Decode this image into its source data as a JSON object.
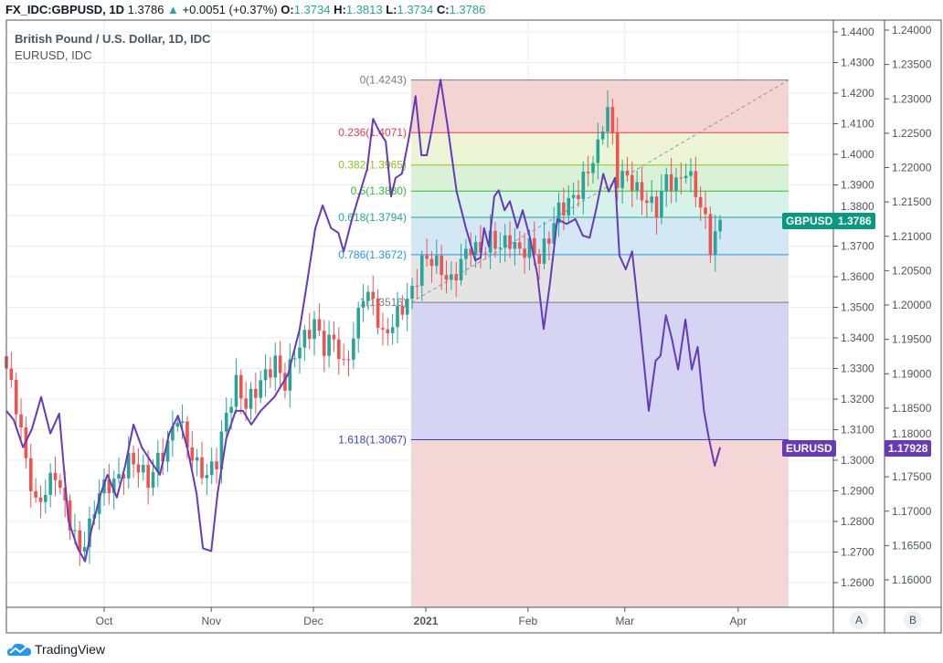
{
  "header": {
    "symbol": "FX_IDC:GBPUSD, 1D",
    "last": "1.3786",
    "change": "+0.0051 (+0.37%)",
    "o_label": "O:",
    "o": "1.3734",
    "h_label": "H:",
    "h": "1.3813",
    "l_label": "L:",
    "l": "1.3734",
    "c_label": "C:",
    "c": "1.3786"
  },
  "legend": {
    "main": "British Pound / U.S. Dollar, 1D, IDC",
    "compare": "EURUSD, IDC"
  },
  "brand": "TradingView",
  "scale_buttons": [
    "A",
    "B"
  ],
  "colors": {
    "up": "#26a69a",
    "down": "#ef5350",
    "eurusd": "#673ab7",
    "gbp_tag": "#089981"
  },
  "chart_data": {
    "type": "candlestick+line",
    "x_unit": "trading day index",
    "x_ticks": [
      {
        "day": 20,
        "label": "Oct"
      },
      {
        "day": 41.9,
        "label": "Nov"
      },
      {
        "day": 62.8,
        "label": "Dec"
      },
      {
        "day": 85.8,
        "label": "2021"
      },
      {
        "day": 106.7,
        "label": "Feb"
      },
      {
        "day": 126.5,
        "label": "Mar"
      },
      {
        "day": 149.7,
        "label": "Apr"
      }
    ],
    "left_axis": {
      "symbol": "GBPUSD",
      "ticks": [
        "1.4400",
        "1.4300",
        "1.4200",
        "1.4100",
        "1.4000",
        "1.3900",
        "1.3800",
        "1.3700",
        "1.3600",
        "1.3500",
        "1.3400",
        "1.3300",
        "1.3200",
        "1.3100",
        "1.3000",
        "1.2900",
        "1.2800",
        "1.2700",
        "1.2600"
      ],
      "last_tag": "GBPUSD",
      "last_value": "1.3786"
    },
    "right_axis": {
      "symbol": "EURUSD",
      "ticks": [
        "1.24000",
        "1.23500",
        "1.23000",
        "1.22500",
        "1.22000",
        "1.21500",
        "1.21000",
        "1.20500",
        "1.20000",
        "1.19500",
        "1.19000",
        "1.18500",
        "1.18000",
        "1.17500",
        "1.17000",
        "1.16500",
        "1.16000"
      ],
      "last_tag": "EURUSD",
      "last_value": "1.17928"
    },
    "gbpusd_close_anchors": [
      [
        0,
        1.33
      ],
      [
        2,
        1.318
      ],
      [
        4,
        1.3
      ],
      [
        6,
        1.285
      ],
      [
        8,
        1.29
      ],
      [
        10,
        1.296
      ],
      [
        12,
        1.285
      ],
      [
        14,
        1.275
      ],
      [
        15,
        1.27
      ],
      [
        17,
        1.278
      ],
      [
        19,
        1.29
      ],
      [
        21,
        1.292
      ],
      [
        23,
        1.294
      ],
      [
        25,
        1.3
      ],
      [
        27,
        1.298
      ],
      [
        29,
        1.293
      ],
      [
        31,
        1.3
      ],
      [
        33,
        1.305
      ],
      [
        35,
        1.315
      ],
      [
        37,
        1.305
      ],
      [
        39,
        1.298
      ],
      [
        41,
        1.295
      ],
      [
        43,
        1.3
      ],
      [
        45,
        1.315
      ],
      [
        47,
        1.325
      ],
      [
        49,
        1.318
      ],
      [
        51,
        1.323
      ],
      [
        53,
        1.328
      ],
      [
        55,
        1.332
      ],
      [
        57,
        1.325
      ],
      [
        59,
        1.335
      ],
      [
        61,
        1.34
      ],
      [
        63,
        1.345
      ],
      [
        65,
        1.337
      ],
      [
        67,
        1.34
      ],
      [
        69,
        1.33
      ],
      [
        71,
        1.34
      ],
      [
        73,
        1.355
      ],
      [
        75,
        1.352
      ],
      [
        77,
        1.34
      ],
      [
        79,
        1.345
      ],
      [
        81,
        1.35
      ],
      [
        83,
        1.355
      ],
      [
        85,
        1.365
      ],
      [
        87,
        1.366
      ],
      [
        89,
        1.362
      ],
      [
        91,
        1.358
      ],
      [
        93,
        1.365
      ],
      [
        95,
        1.37
      ],
      [
        97,
        1.368
      ],
      [
        99,
        1.372
      ],
      [
        101,
        1.37
      ],
      [
        103,
        1.372
      ],
      [
        105,
        1.368
      ],
      [
        107,
        1.37
      ],
      [
        109,
        1.366
      ],
      [
        111,
        1.373
      ],
      [
        113,
        1.382
      ],
      [
        115,
        1.384
      ],
      [
        117,
        1.388
      ],
      [
        119,
        1.395
      ],
      [
        121,
        1.402
      ],
      [
        122,
        1.41
      ],
      [
        123,
        1.415
      ],
      [
        124,
        1.405
      ],
      [
        125,
        1.392
      ],
      [
        127,
        1.393
      ],
      [
        129,
        1.388
      ],
      [
        131,
        1.385
      ],
      [
        133,
        1.382
      ],
      [
        135,
        1.392
      ],
      [
        137,
        1.39
      ],
      [
        139,
        1.395
      ],
      [
        141,
        1.388
      ],
      [
        143,
        1.378
      ],
      [
        144,
        1.37
      ],
      [
        145,
        1.3734
      ],
      [
        146,
        1.3786
      ]
    ],
    "eurusd": [
      [
        0,
        1.1846
      ],
      [
        1.5,
        1.1833
      ],
      [
        3.4,
        1.1793
      ],
      [
        5.2,
        1.1819
      ],
      [
        7.1,
        1.1866
      ],
      [
        9,
        1.1813
      ],
      [
        10.8,
        1.1842
      ],
      [
        12.7,
        1.1686
      ],
      [
        14.6,
        1.1646
      ],
      [
        16.1,
        1.1627
      ],
      [
        17.4,
        1.1673
      ],
      [
        19.3,
        1.1726
      ],
      [
        20.7,
        1.1753
      ],
      [
        22.6,
        1.172
      ],
      [
        24.3,
        1.1766
      ],
      [
        26,
        1.1826
      ],
      [
        27.7,
        1.1793
      ],
      [
        29.5,
        1.1773
      ],
      [
        31.4,
        1.1753
      ],
      [
        33.3,
        1.1813
      ],
      [
        35.1,
        1.1839
      ],
      [
        37,
        1.1793
      ],
      [
        38.9,
        1.1726
      ],
      [
        40.2,
        1.1646
      ],
      [
        41.9,
        1.1642
      ],
      [
        43.2,
        1.1726
      ],
      [
        45,
        1.1806
      ],
      [
        46.9,
        1.1846
      ],
      [
        48.4,
        1.1846
      ],
      [
        50.1,
        1.1826
      ],
      [
        52,
        1.1846
      ],
      [
        54.8,
        1.1866
      ],
      [
        57.6,
        1.1899
      ],
      [
        60,
        1.1965
      ],
      [
        61.5,
        1.2032
      ],
      [
        63.2,
        1.2112
      ],
      [
        64.7,
        1.2145
      ],
      [
        66.4,
        1.2112
      ],
      [
        67.9,
        1.2105
      ],
      [
        69,
        1.2078
      ],
      [
        70.7,
        1.2125
      ],
      [
        72.1,
        1.2158
      ],
      [
        73.8,
        1.2198
      ],
      [
        75,
        1.2271
      ],
      [
        76.4,
        1.2251
      ],
      [
        77.6,
        1.2238
      ],
      [
        78.7,
        1.2158
      ],
      [
        79.6,
        1.2185
      ],
      [
        80.9,
        1.2191
      ],
      [
        82.4,
        1.2245
      ],
      [
        83.7,
        1.2304
      ],
      [
        84.9,
        1.2218
      ],
      [
        86,
        1.2218
      ],
      [
        87.1,
        1.2258
      ],
      [
        88.8,
        1.2328
      ],
      [
        90.3,
        1.2258
      ],
      [
        92.1,
        1.2165
      ],
      [
        94,
        1.2112
      ],
      [
        95.9,
        1.2065
      ],
      [
        97,
        1.2069
      ],
      [
        97.7,
        1.2112
      ],
      [
        98.7,
        1.2085
      ],
      [
        99.8,
        1.2158
      ],
      [
        100.7,
        1.2167
      ],
      [
        101.9,
        1.2138
      ],
      [
        103,
        1.2151
      ],
      [
        104.5,
        1.2112
      ],
      [
        105.6,
        1.2138
      ],
      [
        107.1,
        1.2098
      ],
      [
        108.6,
        1.2045
      ],
      [
        109.9,
        1.1965
      ],
      [
        111.2,
        1.2032
      ],
      [
        112.7,
        1.2125
      ],
      [
        114.6,
        1.2118
      ],
      [
        116.4,
        1.2125
      ],
      [
        117.9,
        1.2101
      ],
      [
        119.3,
        1.2098
      ],
      [
        120.6,
        1.2138
      ],
      [
        122.1,
        1.2191
      ],
      [
        123.2,
        1.2165
      ],
      [
        124.5,
        1.2185
      ],
      [
        125.4,
        1.2072
      ],
      [
        126.7,
        1.2052
      ],
      [
        128,
        1.2078
      ],
      [
        129.5,
        1.1979
      ],
      [
        131.4,
        1.1846
      ],
      [
        132.8,
        1.1919
      ],
      [
        133.8,
        1.1926
      ],
      [
        134.9,
        1.1985
      ],
      [
        136.1,
        1.1952
      ],
      [
        137.4,
        1.1906
      ],
      [
        138.9,
        1.1979
      ],
      [
        140.2,
        1.1906
      ],
      [
        141.4,
        1.1939
      ],
      [
        142.7,
        1.1846
      ],
      [
        143.7,
        1.1806
      ],
      [
        144.9,
        1.1766
      ],
      [
        146,
        1.17928
      ]
    ],
    "fibonacci": {
      "start_day": 82.8,
      "end_day": 160,
      "levels": [
        {
          "ratio": "0",
          "price": "1.4243",
          "color": "#787b86",
          "fill": "#f4d3d3"
        },
        {
          "ratio": "0.236",
          "price": "1.4071",
          "color": "#f23645",
          "fill": "#ebf4d5"
        },
        {
          "ratio": "0.382",
          "price": "1.3965",
          "color": "#8fc31f",
          "fill": "#d9f1d6"
        },
        {
          "ratio": "0.5",
          "price": "1.3880",
          "color": "#2fbf2f",
          "fill": "#d6f2e9"
        },
        {
          "ratio": "0.618",
          "price": "1.3794",
          "color": "#22ab94",
          "fill": "#d4e7f4"
        },
        {
          "ratio": "0.786",
          "price": "1.3672",
          "color": "#2196f3",
          "fill": "#e4e4e4"
        },
        {
          "ratio": "1",
          "price": "1.3516",
          "color": "#787b86",
          "fill": "#d5d5f3"
        },
        {
          "ratio": "1.618",
          "price": "1.3067",
          "color": "#3f3fd6",
          "fill": "#f4d6d6"
        }
      ]
    }
  }
}
